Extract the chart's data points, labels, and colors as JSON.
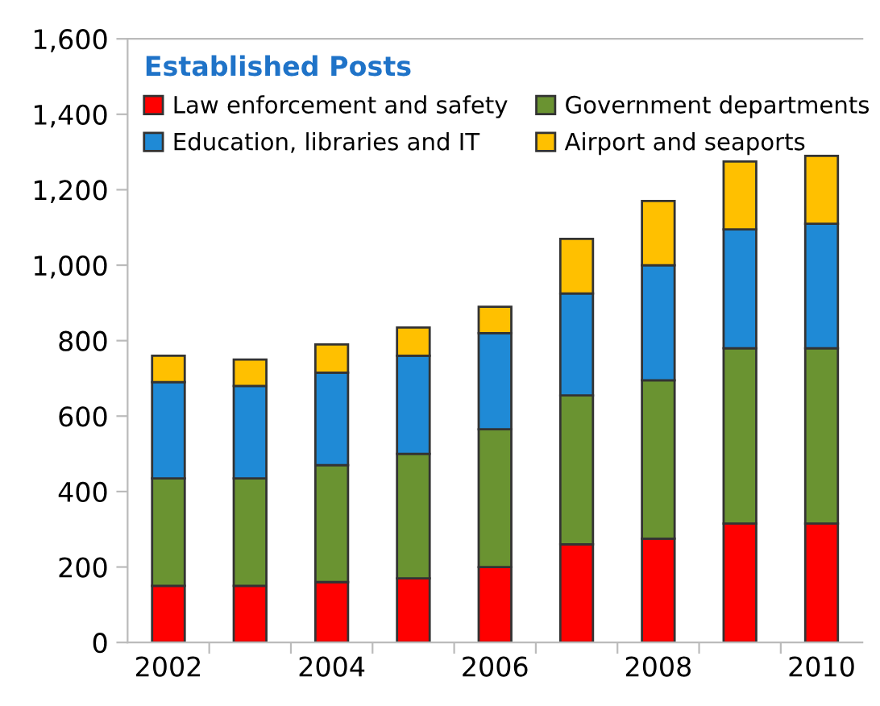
{
  "chart_data": {
    "type": "bar",
    "stacked": true,
    "legend_title": "Established Posts",
    "legend": "top left",
    "grid": false,
    "categories": [
      "2002",
      null,
      "2004",
      null,
      "2006",
      null,
      "2008",
      null,
      "2010"
    ],
    "series": [
      {
        "name": "Law enforcement and safety",
        "color": "#ff0000",
        "values": [
          150,
          150,
          160,
          170,
          200,
          260,
          275,
          315,
          315
        ]
      },
      {
        "name": "Government departments",
        "color": "#6a9331",
        "values": [
          285,
          285,
          310,
          330,
          365,
          395,
          420,
          465,
          465
        ]
      },
      {
        "name": "Education, libraries and IT",
        "color": "#1f8ad6",
        "values": [
          255,
          245,
          245,
          260,
          255,
          270,
          305,
          315,
          330
        ]
      },
      {
        "name": "Airport and seaports",
        "color": "#ffc000",
        "values": [
          70,
          70,
          75,
          75,
          70,
          145,
          170,
          180,
          180
        ]
      }
    ],
    "ylim": [
      0,
      1600
    ],
    "yticks": [
      0,
      200,
      400,
      600,
      800,
      {
        "value": 1000,
        "label": "1,000"
      },
      {
        "value": 1200,
        "label": "1,200"
      },
      {
        "value": 1400,
        "label": "1,400"
      },
      {
        "value": 1600,
        "label": "1,600"
      }
    ]
  }
}
